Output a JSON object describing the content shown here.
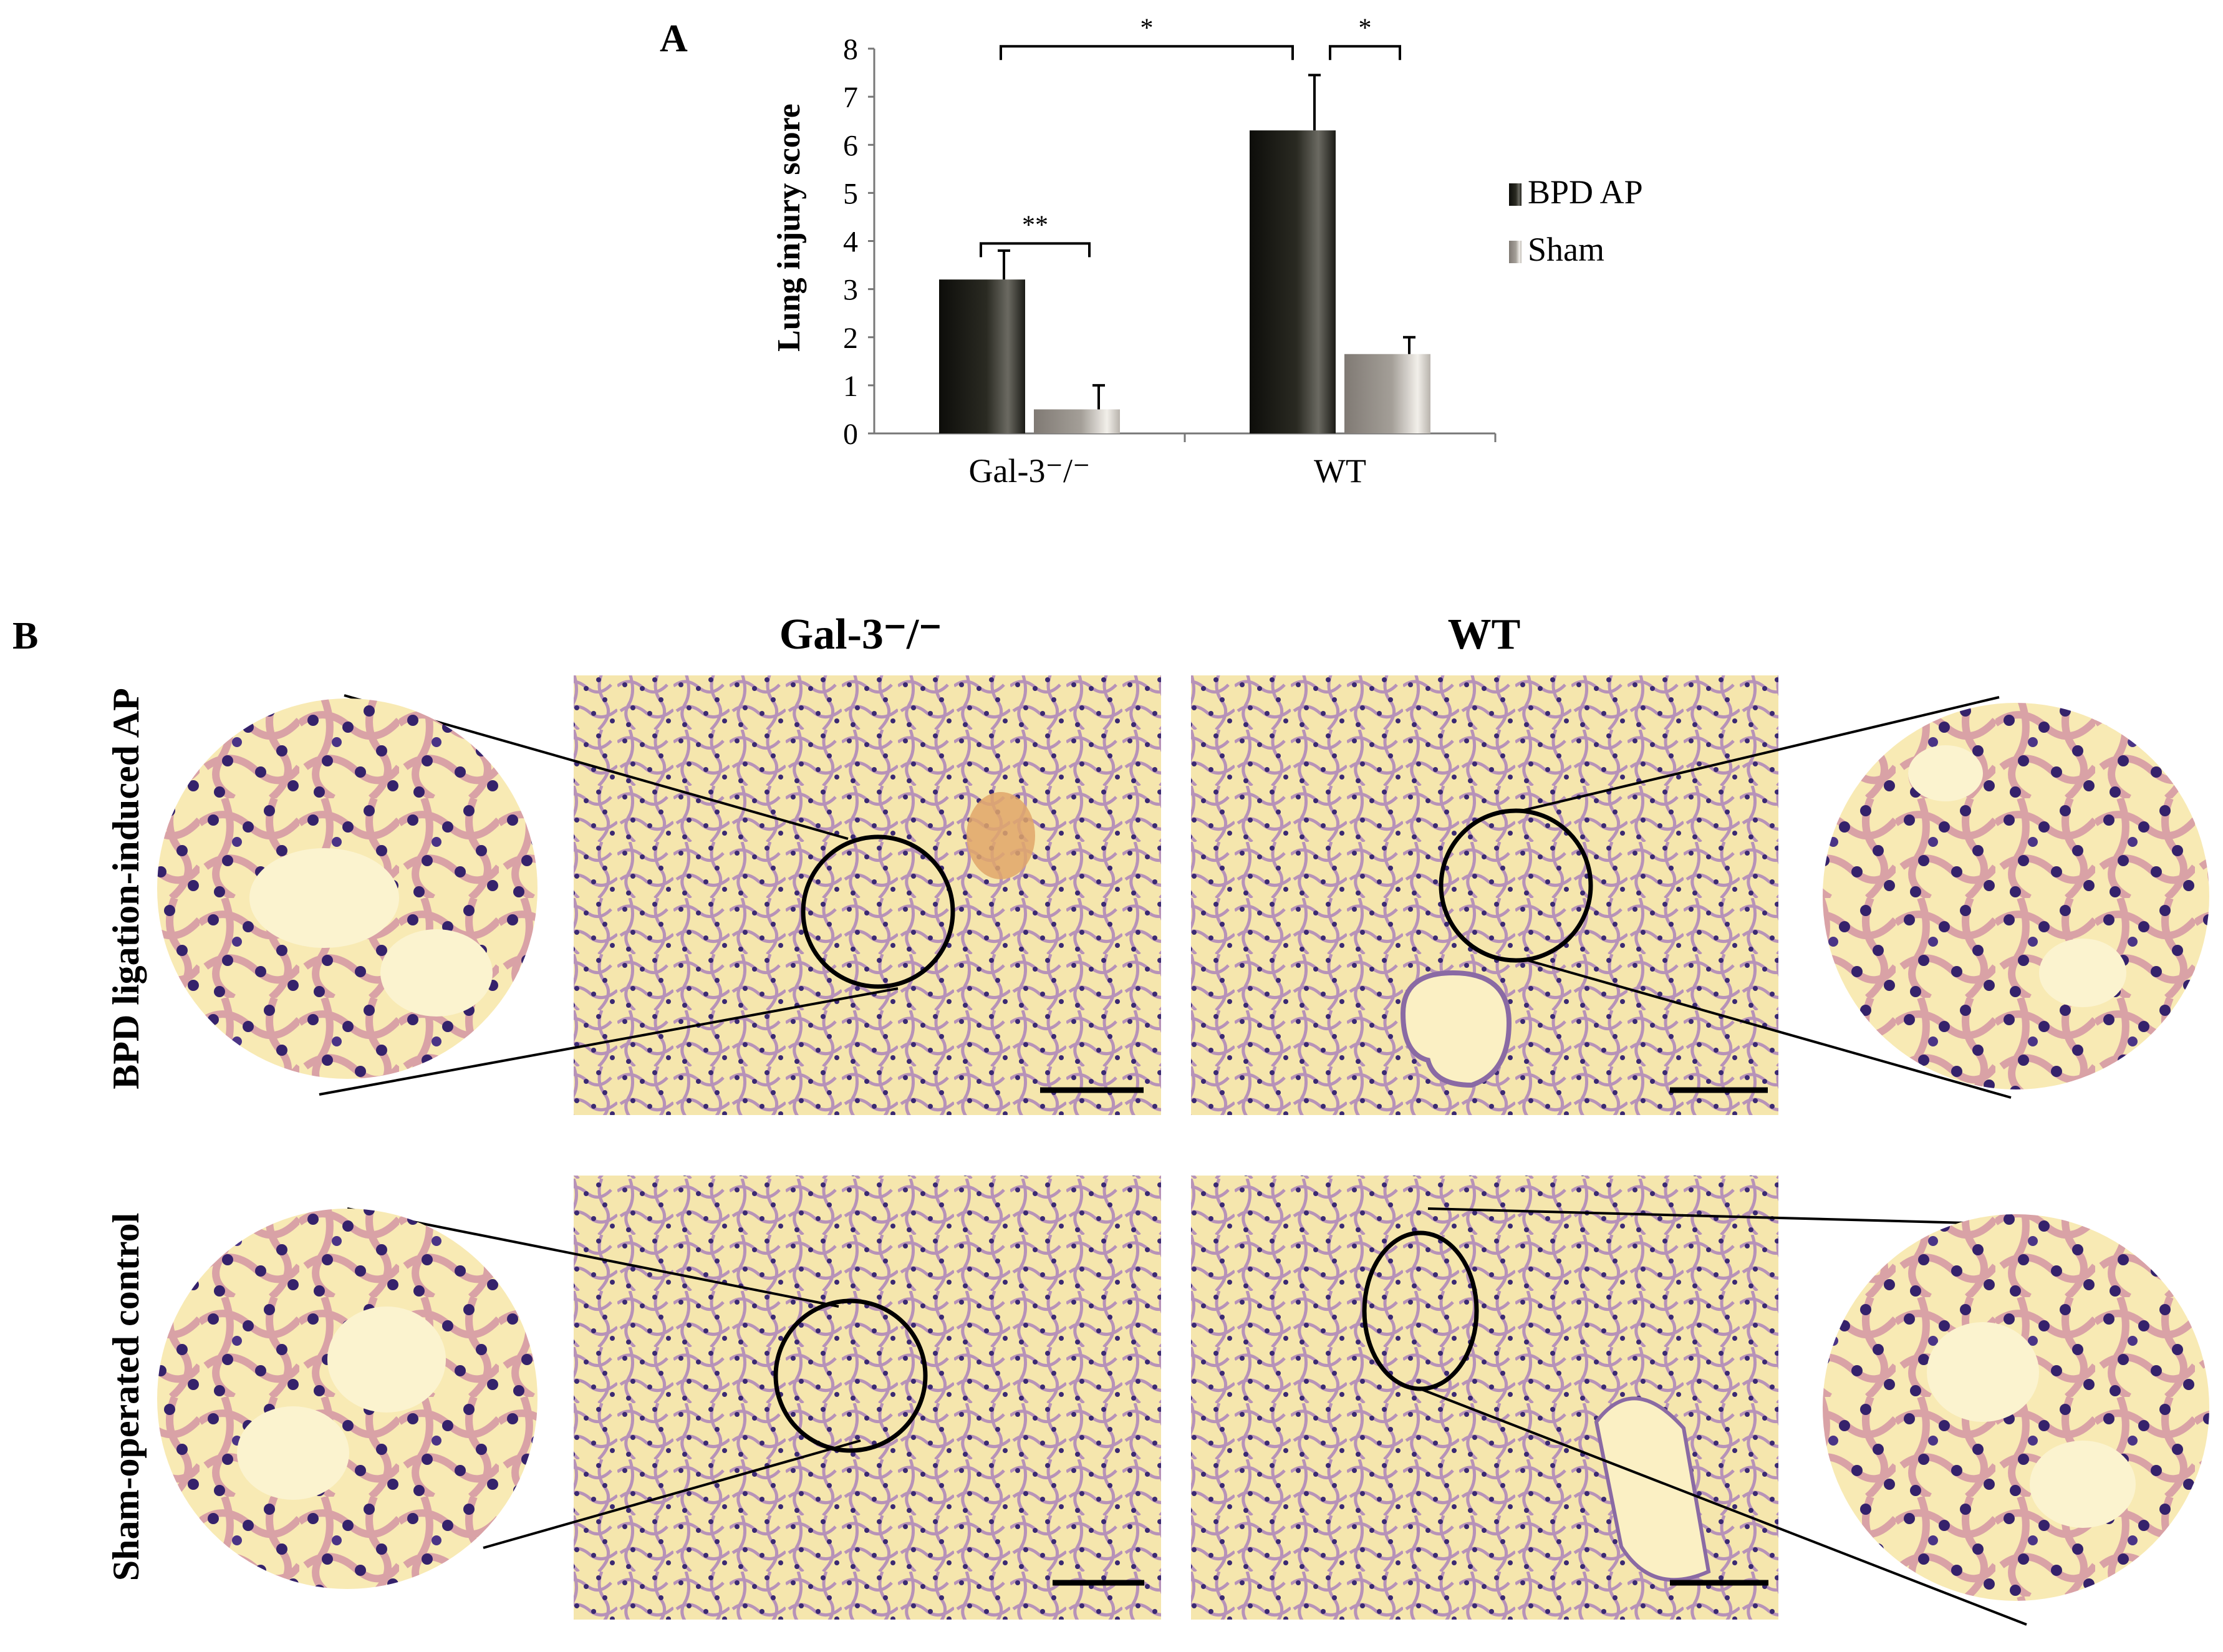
{
  "figure": {
    "panel_a_label": "A",
    "panel_b_label": "B",
    "col_titles": [
      "Gal-3⁻/⁻",
      "WT"
    ],
    "row_labels": [
      "BPD ligation-induced AP",
      "Sham-operated control"
    ]
  },
  "colors": {
    "bpd_bar": "#1a1a14",
    "sham_bar": "#8e8a84",
    "tissue_bg": "#f4e2a0",
    "cell_nuclei": "#3d2a6e",
    "tissue_strands": "#c79aa4"
  },
  "chart_data": {
    "type": "bar",
    "categories": [
      "Gal-3⁻/⁻",
      "WT"
    ],
    "series": [
      {
        "name": "BPD AP",
        "values": [
          3.2,
          6.3
        ],
        "errors": [
          0.6,
          1.15
        ]
      },
      {
        "name": "Sham",
        "values": [
          0.5,
          1.65
        ],
        "errors": [
          0.5,
          0.35
        ]
      }
    ],
    "ylabel": "Lung injury score",
    "xlabel": "",
    "ylim": [
      0,
      8
    ],
    "yticks": [
      "0",
      "1",
      "2",
      "3",
      "4",
      "5",
      "6",
      "7",
      "8"
    ],
    "legend_position": "right",
    "significance": [
      "**",
      "*",
      "*"
    ]
  }
}
